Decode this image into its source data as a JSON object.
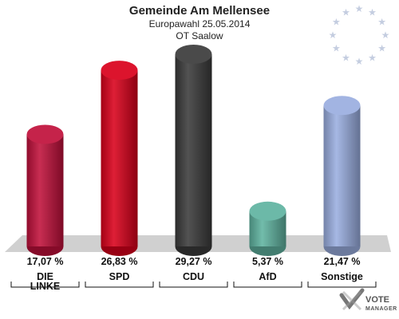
{
  "chart_data": {
    "type": "bar",
    "title": "Gemeinde Am Mellensee",
    "subtitle_lines": [
      "Europawahl 25.05.2014",
      "OT Saalow"
    ],
    "categories": [
      "DIE LINKE",
      "SPD",
      "CDU",
      "AfD",
      "Sonstige"
    ],
    "values": [
      17.07,
      26.83,
      29.27,
      5.37,
      21.47
    ],
    "value_labels": [
      "17,07 %",
      "26,83 %",
      "29,27 %",
      "5,37 %",
      "21,47 %"
    ],
    "colors": [
      "#c0103a",
      "#d9001b",
      "#3a3a3a",
      "#5fb3a0",
      "#9aaee0"
    ],
    "unit": "%",
    "ylim": [
      0,
      30
    ],
    "grid": false,
    "legend": "none"
  },
  "logo": {
    "text": "VOTE",
    "subtext": "MANAGER",
    "decoration": "eu-stars-circle"
  }
}
